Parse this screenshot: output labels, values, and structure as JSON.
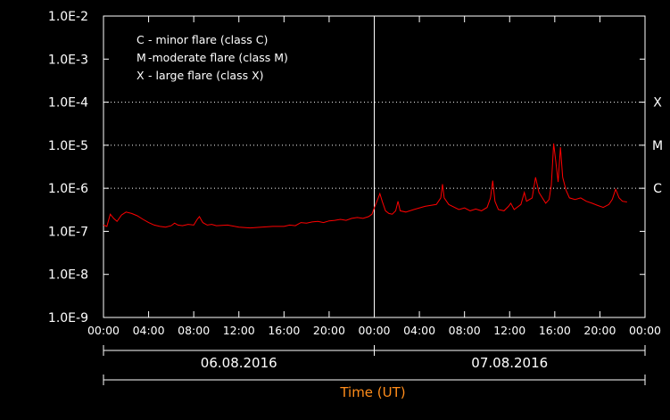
{
  "chart_data": {
    "type": "line",
    "title": "",
    "xlabel": "Time (UT)",
    "ylabel": "",
    "y_scale": "log",
    "ylim": [
      1e-09,
      0.01
    ],
    "x_range_hours": [
      0,
      48
    ],
    "y_ticks": [
      "1.0E-2",
      "1.0E-3",
      "1.0E-4",
      "1.0E-5",
      "1.0E-6",
      "1.0E-7",
      "1.0E-8",
      "1.0E-9"
    ],
    "x_ticks": [
      "00:00",
      "04:00",
      "08:00",
      "12:00",
      "16:00",
      "20:00",
      "00:00",
      "04:00",
      "08:00",
      "12:00",
      "16:00",
      "20:00",
      "00:00"
    ],
    "dates": [
      "06.08.2016",
      "07.08.2016"
    ],
    "class_thresholds": [
      {
        "label": "X",
        "value": 0.0001
      },
      {
        "label": "M",
        "value": 1e-05
      },
      {
        "label": "C",
        "value": 1e-06
      }
    ],
    "legend": [
      {
        "key": "C",
        "text": "- minor flare (class C)"
      },
      {
        "key": "M",
        "text": "-moderate flare (class M)"
      },
      {
        "key": "X",
        "text": "- large flare (class X)"
      }
    ],
    "series": [
      {
        "color": "#ff0000",
        "points": [
          [
            0.0,
            1.4e-07
          ],
          [
            0.3,
            1.3e-07
          ],
          [
            0.6,
            2.5e-07
          ],
          [
            0.9,
            2e-07
          ],
          [
            1.2,
            1.7e-07
          ],
          [
            1.6,
            2.4e-07
          ],
          [
            2.0,
            2.8e-07
          ],
          [
            2.5,
            2.6e-07
          ],
          [
            3.0,
            2.3e-07
          ],
          [
            3.5,
            1.9e-07
          ],
          [
            4.0,
            1.6e-07
          ],
          [
            4.5,
            1.4e-07
          ],
          [
            5.0,
            1.3e-07
          ],
          [
            5.5,
            1.25e-07
          ],
          [
            6.0,
            1.35e-07
          ],
          [
            6.3,
            1.55e-07
          ],
          [
            6.6,
            1.4e-07
          ],
          [
            7.0,
            1.35e-07
          ],
          [
            7.5,
            1.45e-07
          ],
          [
            8.0,
            1.4e-07
          ],
          [
            8.3,
            1.9e-07
          ],
          [
            8.5,
            2.2e-07
          ],
          [
            8.8,
            1.6e-07
          ],
          [
            9.2,
            1.4e-07
          ],
          [
            9.6,
            1.45e-07
          ],
          [
            10.0,
            1.35e-07
          ],
          [
            11.0,
            1.4e-07
          ],
          [
            12.0,
            1.25e-07
          ],
          [
            13.0,
            1.2e-07
          ],
          [
            14.0,
            1.25e-07
          ],
          [
            15.0,
            1.3e-07
          ],
          [
            16.0,
            1.3e-07
          ],
          [
            16.5,
            1.4e-07
          ],
          [
            17.0,
            1.35e-07
          ],
          [
            17.5,
            1.6e-07
          ],
          [
            18.0,
            1.55e-07
          ],
          [
            18.5,
            1.65e-07
          ],
          [
            19.0,
            1.7e-07
          ],
          [
            19.5,
            1.6e-07
          ],
          [
            20.0,
            1.75e-07
          ],
          [
            20.5,
            1.8e-07
          ],
          [
            21.0,
            1.9e-07
          ],
          [
            21.5,
            1.8e-07
          ],
          [
            22.0,
            2e-07
          ],
          [
            22.5,
            2.1e-07
          ],
          [
            23.0,
            2e-07
          ],
          [
            23.5,
            2.2e-07
          ],
          [
            23.8,
            2.5e-07
          ],
          [
            24.0,
            3.5e-07
          ],
          [
            24.3,
            5.5e-07
          ],
          [
            24.5,
            7.5e-07
          ],
          [
            24.7,
            5e-07
          ],
          [
            25.0,
            3e-07
          ],
          [
            25.3,
            2.6e-07
          ],
          [
            25.6,
            2.5e-07
          ],
          [
            25.9,
            3e-07
          ],
          [
            26.1,
            5e-07
          ],
          [
            26.3,
            3e-07
          ],
          [
            26.8,
            2.8e-07
          ],
          [
            27.5,
            3.2e-07
          ],
          [
            28.5,
            3.8e-07
          ],
          [
            29.5,
            4.2e-07
          ],
          [
            29.9,
            6e-07
          ],
          [
            30.05,
            1.25e-06
          ],
          [
            30.2,
            6e-07
          ],
          [
            30.6,
            4.2e-07
          ],
          [
            31.5,
            3.2e-07
          ],
          [
            32.0,
            3.5e-07
          ],
          [
            32.5,
            3e-07
          ],
          [
            33.0,
            3.3e-07
          ],
          [
            33.5,
            3e-07
          ],
          [
            34.0,
            3.6e-07
          ],
          [
            34.3,
            6e-07
          ],
          [
            34.5,
            1.5e-06
          ],
          [
            34.7,
            5e-07
          ],
          [
            35.0,
            3.2e-07
          ],
          [
            35.5,
            3e-07
          ],
          [
            35.9,
            3.8e-07
          ],
          [
            36.1,
            4.5e-07
          ],
          [
            36.4,
            3.2e-07
          ],
          [
            37.0,
            4.2e-07
          ],
          [
            37.3,
            8e-07
          ],
          [
            37.5,
            5e-07
          ],
          [
            38.0,
            6e-07
          ],
          [
            38.3,
            1.8e-06
          ],
          [
            38.6,
            8e-07
          ],
          [
            38.9,
            6e-07
          ],
          [
            39.2,
            4.5e-07
          ],
          [
            39.5,
            5.5e-07
          ],
          [
            39.7,
            1.2e-06
          ],
          [
            39.9,
            1.1e-05
          ],
          [
            40.1,
            4e-06
          ],
          [
            40.3,
            1.4e-06
          ],
          [
            40.5,
            9e-06
          ],
          [
            40.7,
            1.8e-06
          ],
          [
            41.0,
            9e-07
          ],
          [
            41.3,
            6e-07
          ],
          [
            41.8,
            5.5e-07
          ],
          [
            42.3,
            6e-07
          ],
          [
            42.8,
            5e-07
          ],
          [
            43.3,
            4.5e-07
          ],
          [
            43.8,
            4e-07
          ],
          [
            44.3,
            3.6e-07
          ],
          [
            44.8,
            4.2e-07
          ],
          [
            45.1,
            5.5e-07
          ],
          [
            45.4,
            9.5e-07
          ],
          [
            45.7,
            6e-07
          ],
          [
            46.0,
            5e-07
          ],
          [
            46.4,
            4.8e-07
          ]
        ]
      }
    ]
  }
}
